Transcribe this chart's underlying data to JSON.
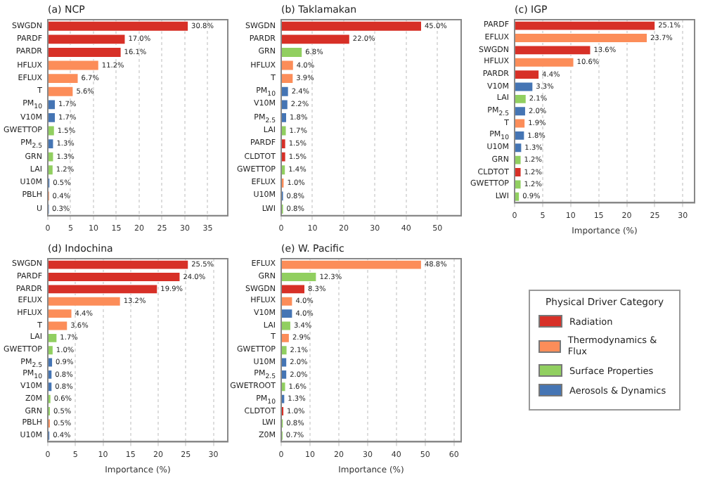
{
  "chart_data": [
    {
      "type": "bar",
      "orientation": "horizontal",
      "title": "(a) NCP",
      "categories": [
        "SWGDN",
        "PARDF",
        "PARDR",
        "HFLUX",
        "EFLUX",
        "T",
        "PM$_{10}$",
        "V10M",
        "GWETTOP",
        "PM$_{2.5}$",
        "GRN",
        "LAI",
        "U10M",
        "PBLH",
        "U"
      ],
      "xlim": [
        0,
        39.4
      ],
      "xticks": [
        0,
        5,
        10,
        15,
        20,
        25,
        30,
        35
      ],
      "grid": "x",
      "legend": false,
      "series": [
        {
          "color": "#d73027",
          "values": [
            30.8,
            17.0,
            16.1,
            null,
            null,
            null,
            null,
            null,
            null,
            null,
            null,
            null,
            null,
            null,
            null
          ],
          "value_labels": [
            "30.8%",
            "17.0%",
            "16.1%",
            null,
            null,
            null,
            null,
            null,
            null,
            null,
            null,
            null,
            null,
            null,
            null
          ]
        },
        {
          "color": "#fc8d59",
          "values": [
            null,
            null,
            null,
            11.2,
            6.7,
            5.6,
            null,
            null,
            null,
            null,
            null,
            null,
            null,
            0.4,
            null
          ],
          "value_labels": [
            null,
            null,
            null,
            "11.2%",
            "6.7%",
            "5.6%",
            null,
            null,
            null,
            null,
            null,
            null,
            null,
            "0.4%",
            null
          ]
        },
        {
          "color": "#91cf60",
          "values": [
            null,
            null,
            null,
            null,
            null,
            null,
            null,
            null,
            1.5,
            null,
            1.3,
            1.2,
            null,
            null,
            null
          ],
          "value_labels": [
            null,
            null,
            null,
            null,
            null,
            null,
            null,
            null,
            "1.5%",
            null,
            "1.3%",
            "1.2%",
            null,
            null,
            null
          ]
        },
        {
          "color": "#4575b4",
          "values": [
            null,
            null,
            null,
            null,
            null,
            null,
            1.7,
            1.7,
            null,
            1.3,
            null,
            null,
            0.5,
            null,
            0.3
          ],
          "value_labels": [
            null,
            null,
            null,
            null,
            null,
            null,
            "1.7%",
            "1.7%",
            null,
            "1.3%",
            null,
            null,
            "0.5%",
            null,
            "0.3%"
          ]
        }
      ]
    },
    {
      "type": "bar",
      "orientation": "horizontal",
      "title": "(b) Taklamakan",
      "categories": [
        "SWGDN",
        "PARDR",
        "GRN",
        "HFLUX",
        "T",
        "PM$_{10}$",
        "V10M",
        "PM$_{2.5}$",
        "LAI",
        "PARDF",
        "CLDTOT",
        "GWETTOP",
        "EFLUX",
        "U10M",
        "LWI"
      ],
      "xlim": [
        0,
        57.6
      ],
      "xticks": [
        0,
        10,
        20,
        30,
        40,
        50
      ],
      "grid": "x",
      "legend": false,
      "series": [
        {
          "color": "#d73027",
          "values": [
            45.0,
            22.0,
            null,
            null,
            null,
            null,
            null,
            null,
            null,
            1.5,
            1.5,
            null,
            null,
            null,
            null
          ],
          "value_labels": [
            "45.0%",
            "22.0%",
            null,
            null,
            null,
            null,
            null,
            null,
            null,
            "1.5%",
            "1.5%",
            null,
            null,
            null,
            null
          ]
        },
        {
          "color": "#fc8d59",
          "values": [
            null,
            null,
            null,
            4.0,
            3.9,
            null,
            null,
            null,
            null,
            null,
            null,
            null,
            1.0,
            null,
            null
          ],
          "value_labels": [
            null,
            null,
            null,
            "4.0%",
            "3.9%",
            null,
            null,
            null,
            null,
            null,
            null,
            null,
            "1.0%",
            null,
            null
          ]
        },
        {
          "color": "#91cf60",
          "values": [
            null,
            null,
            6.8,
            null,
            null,
            null,
            null,
            null,
            1.7,
            null,
            null,
            1.4,
            null,
            null,
            0.8
          ],
          "value_labels": [
            null,
            null,
            "6.8%",
            null,
            null,
            null,
            null,
            null,
            "1.7%",
            null,
            null,
            "1.4%",
            null,
            null,
            "0.8%"
          ]
        },
        {
          "color": "#4575b4",
          "values": [
            null,
            null,
            null,
            null,
            null,
            2.4,
            2.2,
            1.8,
            null,
            null,
            null,
            null,
            null,
            0.8,
            null
          ],
          "value_labels": [
            null,
            null,
            null,
            null,
            null,
            "2.4%",
            "2.2%",
            "1.8%",
            null,
            null,
            null,
            null,
            null,
            "0.8%",
            null
          ]
        }
      ]
    },
    {
      "type": "bar",
      "orientation": "horizontal",
      "title": "(c) IGP",
      "xlabel": "Importance (%)",
      "categories": [
        "PARDF",
        "EFLUX",
        "SWGDN",
        "HFLUX",
        "PARDR",
        "V10M",
        "LAI",
        "PM$_{2.5}$",
        "T",
        "PM$_{10}$",
        "U10M",
        "GRN",
        "CLDTOT",
        "GWETTOP",
        "LWI"
      ],
      "xlim": [
        0,
        32.1
      ],
      "xticks": [
        0,
        5,
        10,
        15,
        20,
        25,
        30
      ],
      "grid": "x",
      "legend": false,
      "series": [
        {
          "color": "#d73027",
          "values": [
            25.1,
            null,
            13.6,
            null,
            4.4,
            null,
            null,
            null,
            null,
            null,
            null,
            null,
            1.2,
            null,
            null
          ],
          "value_labels": [
            "25.1%",
            null,
            "13.6%",
            null,
            "4.4%",
            null,
            null,
            null,
            null,
            null,
            null,
            null,
            "1.2%",
            null,
            null
          ]
        },
        {
          "color": "#fc8d59",
          "values": [
            null,
            23.7,
            null,
            10.6,
            null,
            null,
            null,
            null,
            1.9,
            null,
            null,
            null,
            null,
            null,
            null
          ],
          "value_labels": [
            null,
            "23.7%",
            null,
            "10.6%",
            null,
            null,
            null,
            null,
            "1.9%",
            null,
            null,
            null,
            null,
            null,
            null
          ]
        },
        {
          "color": "#91cf60",
          "values": [
            null,
            null,
            null,
            null,
            null,
            null,
            2.1,
            null,
            null,
            null,
            null,
            1.2,
            null,
            1.2,
            0.9
          ],
          "value_labels": [
            null,
            null,
            null,
            null,
            null,
            null,
            "2.1%",
            null,
            null,
            null,
            null,
            "1.2%",
            null,
            "1.2%",
            "0.9%"
          ]
        },
        {
          "color": "#4575b4",
          "values": [
            null,
            null,
            null,
            null,
            null,
            3.3,
            null,
            2.0,
            null,
            1.8,
            1.3,
            null,
            null,
            null,
            null
          ],
          "value_labels": [
            null,
            null,
            null,
            null,
            null,
            "3.3%",
            null,
            "2.0%",
            null,
            "1.8%",
            "1.3%",
            null,
            null,
            null,
            null
          ]
        }
      ]
    },
    {
      "type": "bar",
      "orientation": "horizontal",
      "title": "(d) Indochina",
      "xlabel": "Importance (%)",
      "categories": [
        "SWGDN",
        "PARDF",
        "PARDR",
        "EFLUX",
        "HFLUX",
        "T",
        "LAI",
        "GWETTOP",
        "PM$_{2.5}$",
        "PM$_{10}$",
        "V10M",
        "Z0M",
        "GRN",
        "PBLH",
        "U10M"
      ],
      "xlim": [
        0,
        32.6
      ],
      "xticks": [
        0,
        5,
        10,
        15,
        20,
        25,
        30
      ],
      "grid": "x",
      "legend": false,
      "series": [
        {
          "color": "#d73027",
          "values": [
            25.5,
            24.0,
            19.9,
            null,
            null,
            null,
            null,
            null,
            null,
            null,
            null,
            null,
            null,
            null,
            null
          ],
          "value_labels": [
            "25.5%",
            "24.0%",
            "19.9%",
            null,
            null,
            null,
            null,
            null,
            null,
            null,
            null,
            null,
            null,
            null,
            null
          ]
        },
        {
          "color": "#fc8d59",
          "values": [
            null,
            null,
            null,
            13.2,
            4.4,
            3.6,
            null,
            null,
            null,
            null,
            null,
            null,
            null,
            0.5,
            null
          ],
          "value_labels": [
            null,
            null,
            null,
            "13.2%",
            "4.4%",
            "3.6%",
            null,
            null,
            null,
            null,
            null,
            null,
            null,
            "0.5%",
            null
          ]
        },
        {
          "color": "#91cf60",
          "values": [
            null,
            null,
            null,
            null,
            null,
            null,
            1.7,
            1.0,
            null,
            null,
            null,
            0.6,
            0.5,
            null,
            null
          ],
          "value_labels": [
            null,
            null,
            null,
            null,
            null,
            null,
            "1.7%",
            "1.0%",
            null,
            null,
            null,
            "0.6%",
            "0.5%",
            null,
            null
          ]
        },
        {
          "color": "#4575b4",
          "values": [
            null,
            null,
            null,
            null,
            null,
            null,
            null,
            null,
            0.9,
            0.8,
            0.8,
            null,
            null,
            null,
            0.4
          ],
          "value_labels": [
            null,
            null,
            null,
            null,
            null,
            null,
            null,
            null,
            "0.9%",
            "0.8%",
            "0.8%",
            null,
            null,
            null,
            "0.4%"
          ]
        }
      ]
    },
    {
      "type": "bar",
      "orientation": "horizontal",
      "title": "(e) W. Pacific",
      "xlabel": "Importance (%)",
      "categories": [
        "EFLUX",
        "GRN",
        "SWGDN",
        "HFLUX",
        "V10M",
        "LAI",
        "T",
        "GWETTOP",
        "U10M",
        "PM$_{2.5}$",
        "GWETROOT",
        "PM$_{10}$",
        "CLDTOT",
        "LWI",
        "Z0M"
      ],
      "xlim": [
        0,
        62.5
      ],
      "xticks": [
        0,
        10,
        20,
        30,
        40,
        50,
        60
      ],
      "grid": "x",
      "legend": "right",
      "legend_title": "Physical Driver Category",
      "series": [
        {
          "name": "Radiation",
          "color": "#d73027",
          "values": [
            null,
            null,
            8.3,
            null,
            null,
            null,
            null,
            null,
            null,
            null,
            null,
            null,
            1.0,
            null,
            null
          ],
          "value_labels": [
            null,
            null,
            "8.3%",
            null,
            null,
            null,
            null,
            null,
            null,
            null,
            null,
            null,
            "1.0%",
            null,
            null
          ]
        },
        {
          "name": "Thermodynamics & Flux",
          "color": "#fc8d59",
          "values": [
            48.8,
            null,
            null,
            4.0,
            null,
            null,
            2.9,
            null,
            null,
            null,
            null,
            null,
            null,
            null,
            null
          ],
          "value_labels": [
            "48.8%",
            null,
            null,
            "4.0%",
            null,
            null,
            "2.9%",
            null,
            null,
            null,
            null,
            null,
            null,
            null,
            null
          ]
        },
        {
          "name": "Surface Properties",
          "color": "#91cf60",
          "values": [
            null,
            12.3,
            null,
            null,
            null,
            3.4,
            null,
            2.1,
            null,
            null,
            1.6,
            null,
            null,
            0.8,
            0.7
          ],
          "value_labels": [
            null,
            "12.3%",
            null,
            null,
            null,
            "3.4%",
            null,
            "2.1%",
            null,
            null,
            "1.6%",
            null,
            null,
            "0.8%",
            "0.7%"
          ]
        },
        {
          "name": "Aerosols & Dynamics",
          "color": "#4575b4",
          "values": [
            null,
            null,
            null,
            null,
            4.0,
            null,
            null,
            null,
            2.0,
            2.0,
            null,
            1.3,
            null,
            null,
            null
          ],
          "value_labels": [
            null,
            null,
            null,
            null,
            "4.0%",
            null,
            null,
            null,
            "2.0%",
            "2.0%",
            null,
            "1.3%",
            null,
            null,
            null
          ]
        }
      ]
    }
  ]
}
